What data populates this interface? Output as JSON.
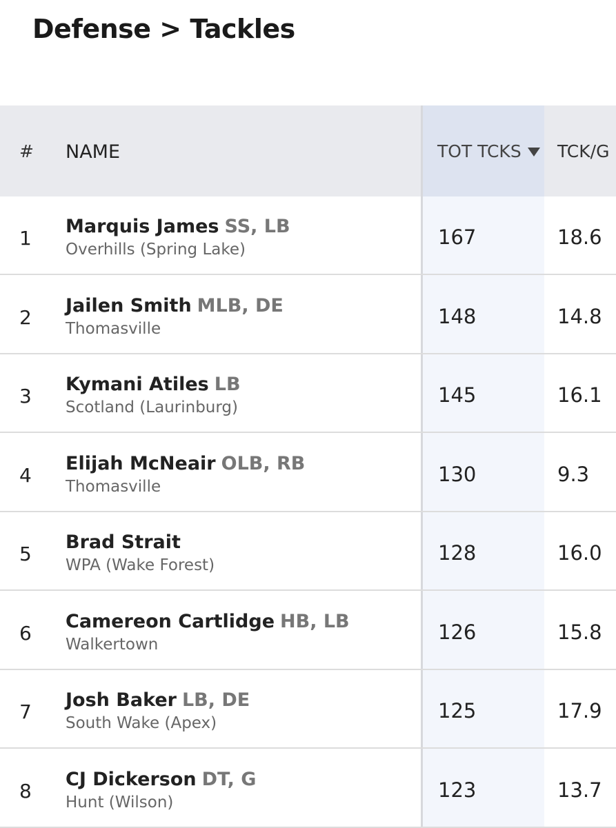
{
  "header": {
    "title": "Defense > Tackles"
  },
  "table": {
    "columns": [
      "#",
      "NAME",
      "TOT TCKS",
      "TCK/G"
    ],
    "rows": [
      {
        "rank": "1",
        "name": "Marquis James",
        "positions": "SS, LB",
        "school": "Overhills (Spring Lake)",
        "tot": "167",
        "per_game": "18.6"
      },
      {
        "rank": "2",
        "name": "Jailen Smith",
        "positions": "MLB, DE",
        "school": "Thomasville",
        "tot": "148",
        "per_game": "14.8"
      },
      {
        "rank": "3",
        "name": "Kymani Atiles",
        "positions": "LB",
        "school": "Scotland (Laurinburg)",
        "tot": "145",
        "per_game": "16.1"
      },
      {
        "rank": "4",
        "name": "Elijah McNeair",
        "positions": "OLB, RB",
        "school": "Thomasville",
        "tot": "130",
        "per_game": "9.3"
      },
      {
        "rank": "5",
        "name": "Brad Strait",
        "positions": null,
        "school": "WPA (Wake Forest)",
        "tot": "128",
        "per_game": "16.0"
      },
      {
        "rank": "6",
        "name": "Camereon Cartlidge",
        "positions": "HB, LB",
        "school": "Walkertown",
        "tot": "126",
        "per_game": "15.8"
      },
      {
        "rank": "7",
        "name": "Josh Baker",
        "positions": "LB, DE",
        "school": "South Wake (Apex)",
        "tot": "125",
        "per_game": "17.9"
      },
      {
        "rank": "8",
        "name": "CJ Dickerson",
        "positions": "DT, G",
        "school": "Hunt (Wilson)",
        "tot": "123",
        "per_game": "13.7"
      }
    ]
  }
}
